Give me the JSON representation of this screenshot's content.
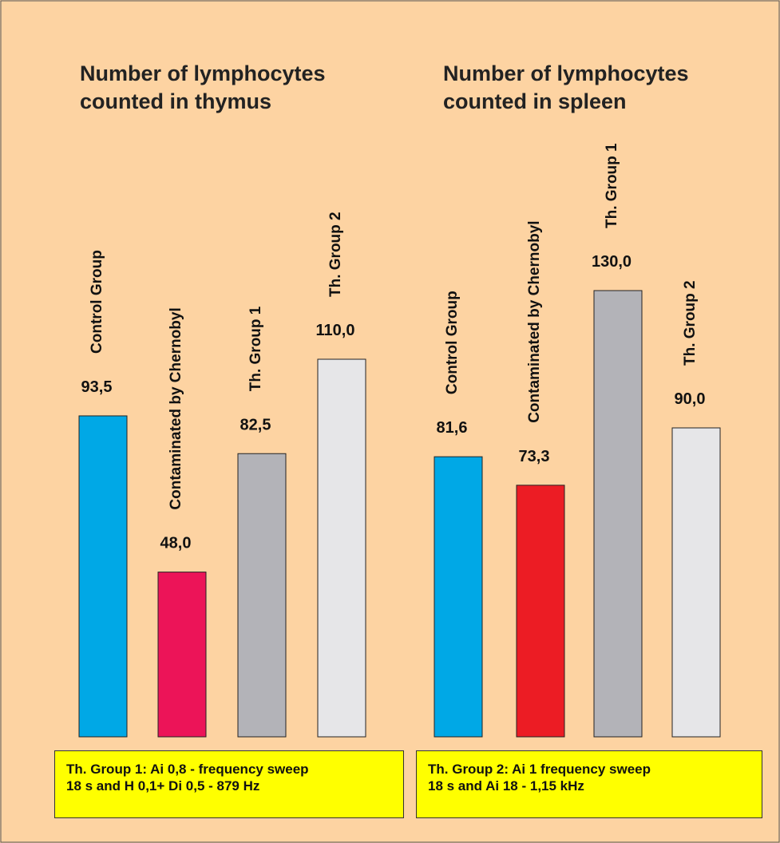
{
  "chart_data": [
    {
      "type": "bar",
      "title": "Number of lymphocytes counted in thymus",
      "categories": [
        "Control Group",
        "Contaminated by Chernobyl",
        "Th. Group 1",
        "Th. Group 2"
      ],
      "values": [
        93.5,
        48.0,
        82.5,
        110.0
      ],
      "value_labels": [
        "93,5",
        "48,0",
        "82,5",
        "110,0"
      ],
      "colors": [
        "#00a8e6",
        "#ec1458",
        "#b3b3b8",
        "#e6e6e8"
      ],
      "note": [
        "Th. Group 1: Ai 0,8 - frequency sweep",
        "18 s and H 0,1+ Di 0,5 - 879 Hz"
      ]
    },
    {
      "type": "bar",
      "title": "Number of lymphocytes counted in spleen",
      "categories": [
        "Control Group",
        "Contaminated by Chernobyl",
        "Th. Group 1",
        "Th. Group 2"
      ],
      "values": [
        81.6,
        73.3,
        130.0,
        90.0
      ],
      "value_labels": [
        "81,6",
        "73,3",
        "130,0",
        "90,0"
      ],
      "colors": [
        "#00a8e6",
        "#ec1c24",
        "#b3b3b8",
        "#e6e6e8"
      ],
      "note": [
        "Th. Group 2: Ai 1 frequency sweep",
        "18 s and  Ai 18 - 1,15 kHz"
      ]
    }
  ]
}
